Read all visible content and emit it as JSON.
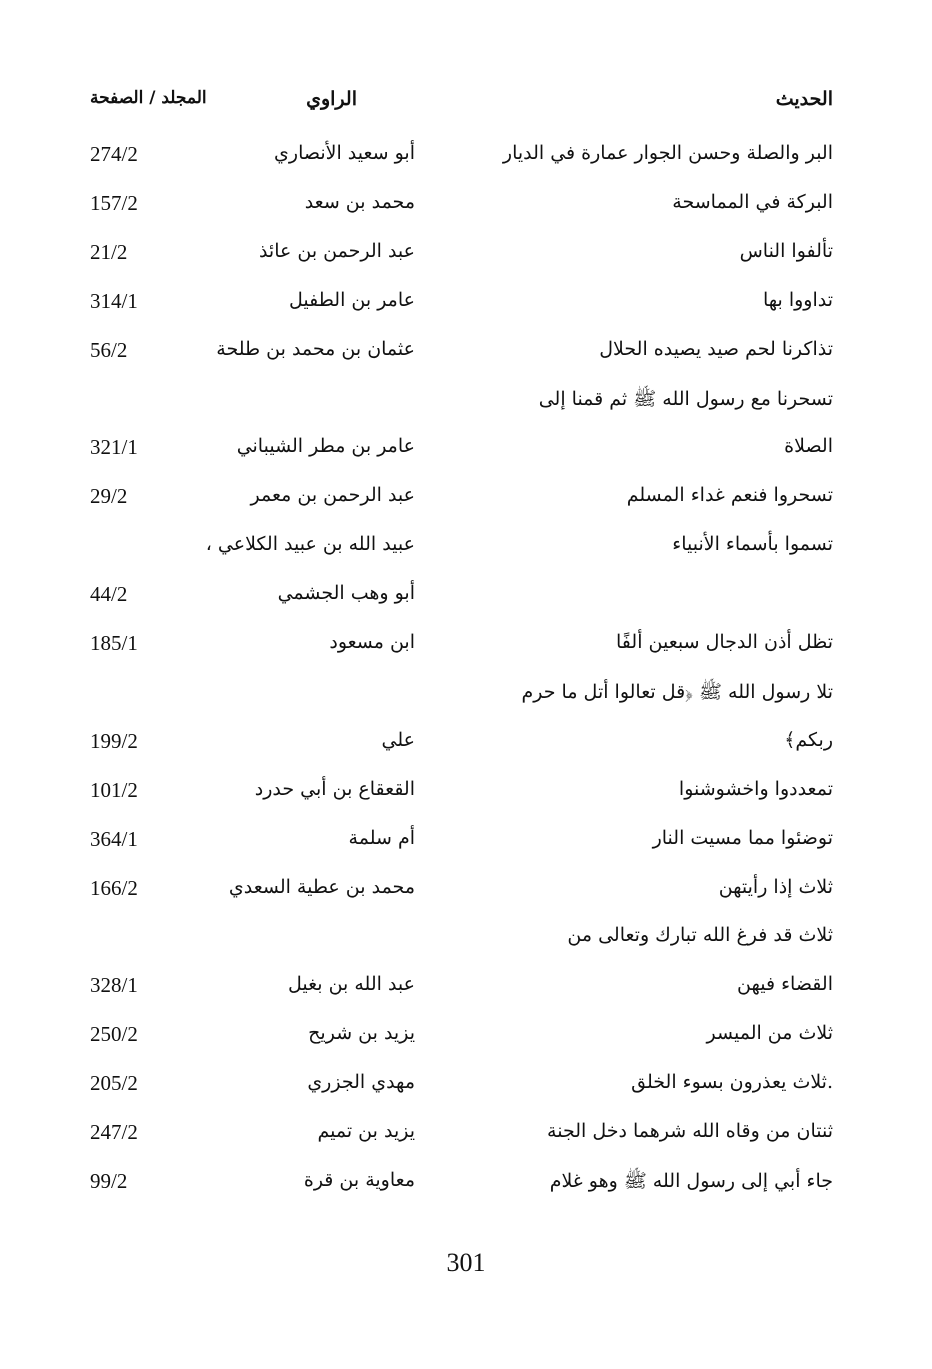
{
  "header": {
    "hadith": "الحديث",
    "narrator": "الراوي",
    "ref": "المجلد / الصفحة"
  },
  "lines": [
    {
      "hadith": "البر والصلة وحسن الجوار عمارة في الديار",
      "narrator": "أبو سعيد الأنصاري",
      "ref": "274/2"
    },
    {
      "hadith": "البركة في المماسحة",
      "narrator": "محمد بن سعد",
      "ref": "157/2"
    },
    {
      "hadith": "تألفوا الناس",
      "narrator": "عبد الرحمن بن عائذ",
      "ref": "21/2"
    },
    {
      "hadith": "تداووا بها",
      "narrator": "عامر بن الطفيل",
      "ref": "314/1"
    },
    {
      "hadith": "تذاكرنا لحم صيد يصيده الحلال",
      "narrator": "عثمان بن محمد بن طلحة",
      "ref": "56/2"
    },
    {
      "hadith": "تسحرنا مع رسول الله ﷺ ثم قمنا إلى",
      "narrator": "",
      "ref": ""
    },
    {
      "hadith": "الصلاة",
      "narrator": "عامر بن مطر الشيباني",
      "ref": "321/1"
    },
    {
      "hadith": "تسحروا فنعم غداء المسلم",
      "narrator": "عبد الرحمن بن معمر",
      "ref": "29/2"
    },
    {
      "hadith": "تسموا بأسماء الأنبياء",
      "narrator": "عبيد الله بن عبيد الكلاعي ،",
      "ref": ""
    },
    {
      "hadith": "",
      "narrator": "أبو وهب الجشمي",
      "ref": "44/2"
    },
    {
      "hadith": "تظل أذن الدجال سبعين ألفًا",
      "narrator": "ابن مسعود",
      "ref": "185/1"
    },
    {
      "hadith": "تلا رسول الله ﷺ ﴿قل تعالوا أتل ما حرم",
      "narrator": "",
      "ref": ""
    },
    {
      "hadith": "ربكم﴾",
      "narrator": "علي",
      "ref": "199/2"
    },
    {
      "hadith": "تمعددوا واخشوشنوا",
      "narrator": "القعقاع بن أبي حدرد",
      "ref": "101/2"
    },
    {
      "hadith": "توضئوا مما مسيت النار",
      "narrator": "أم سلمة",
      "ref": "364/1"
    },
    {
      "hadith": "ثلاث إذا رأيتهن",
      "narrator": "محمد بن عطية السعدي",
      "ref": "166/2"
    },
    {
      "hadith": "ثلاث قد فرغ الله تبارك وتعالى من",
      "narrator": "",
      "ref": ""
    },
    {
      "hadith": "القضاء فيهن",
      "narrator": "عبد الله بن بغيل",
      "ref": "328/1"
    },
    {
      "hadith": "ثلاث من الميسر",
      "narrator": "يزيد بن شريح",
      "ref": "250/2"
    },
    {
      "hadith": ".ثلاث يعذرون بسوء الخلق",
      "narrator": "مهدي الجزري",
      "ref": "205/2"
    },
    {
      "hadith": "ثنتان من وقاه الله شرهما دخل الجنة",
      "narrator": "يزيد بن تميم",
      "ref": "247/2"
    },
    {
      "hadith": "جاء أبي إلى رسول الله ﷺ وهو غلام",
      "narrator": "معاوية بن قرة",
      "ref": "99/2"
    }
  ],
  "page_number": "301"
}
